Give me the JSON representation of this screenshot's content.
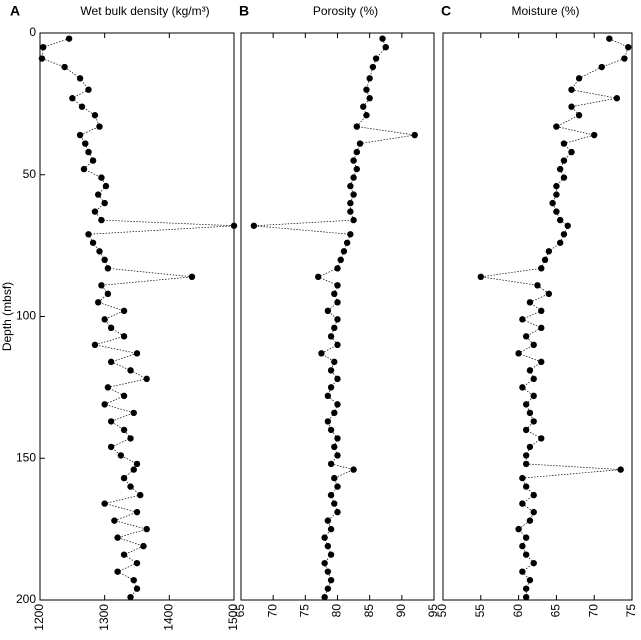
{
  "chart_data": [
    {
      "type": "line",
      "panel": "A",
      "title": "Wet bulk density (kg/m³)",
      "ylabel": "Depth (mbsf)",
      "x": [
        1245,
        1205,
        1203,
        1238,
        1262,
        1275,
        1250,
        1265,
        1285,
        1292,
        1262,
        1270,
        1275,
        1282,
        1268,
        1295,
        1302,
        1290,
        1300,
        1285,
        1295,
        1500,
        1275,
        1282,
        1292,
        1300,
        1305,
        1435,
        1295,
        1305,
        1290,
        1330,
        1300,
        1310,
        1330,
        1285,
        1350,
        1310,
        1340,
        1365,
        1305,
        1330,
        1300,
        1345,
        1310,
        1330,
        1340,
        1310,
        1325,
        1350,
        1345,
        1330,
        1340,
        1355,
        1300,
        1350,
        1315,
        1365,
        1320,
        1360,
        1330,
        1350,
        1320,
        1345,
        1350,
        1340
      ],
      "y": [
        2,
        5,
        9,
        12,
        16,
        20,
        23,
        26,
        29,
        33,
        36,
        39,
        42,
        45,
        48,
        51,
        54,
        57,
        60,
        63,
        66,
        68,
        71,
        74,
        77,
        80,
        83,
        86,
        89,
        92,
        95,
        98,
        101,
        104,
        107,
        110,
        113,
        116,
        119,
        122,
        125,
        128,
        131,
        134,
        137,
        140,
        143,
        146,
        149,
        152,
        154,
        157,
        160,
        163,
        166,
        169,
        172,
        175,
        178,
        181,
        184,
        187,
        190,
        193,
        196,
        199
      ],
      "xlim": [
        1200,
        1500
      ],
      "xticks": [
        1200,
        1300,
        1400,
        1500
      ],
      "ylim": [
        0,
        200
      ],
      "yticks": [
        0,
        50,
        100,
        150,
        200
      ],
      "y_inverted": true,
      "color": "#000000",
      "line_style": "dotted"
    },
    {
      "type": "line",
      "panel": "B",
      "title": "Porosity (%)",
      "x": [
        87,
        87.5,
        86,
        85.5,
        85,
        84.5,
        85,
        84,
        84.5,
        83,
        92,
        83.5,
        83,
        82.5,
        83,
        82.5,
        82,
        82.5,
        82,
        82,
        82.5,
        67,
        82,
        81.5,
        81,
        80.5,
        80,
        77,
        80,
        79.5,
        80,
        78.5,
        80,
        79.5,
        79,
        80,
        77.5,
        79.5,
        79,
        80,
        79,
        78.5,
        80,
        79.5,
        78.5,
        79,
        80,
        79.5,
        80,
        79,
        82.5,
        79.5,
        80,
        79,
        79.5,
        80,
        78.5,
        79,
        78,
        78.5,
        79,
        78,
        78.5,
        79,
        78.5,
        78
      ],
      "y": [
        2,
        5,
        9,
        12,
        16,
        20,
        23,
        26,
        29,
        33,
        36,
        39,
        42,
        45,
        48,
        51,
        54,
        57,
        60,
        63,
        66,
        68,
        71,
        74,
        77,
        80,
        83,
        86,
        89,
        92,
        95,
        98,
        101,
        104,
        107,
        110,
        113,
        116,
        119,
        122,
        125,
        128,
        131,
        134,
        137,
        140,
        143,
        146,
        149,
        152,
        154,
        157,
        160,
        163,
        166,
        169,
        172,
        175,
        178,
        181,
        184,
        187,
        190,
        193,
        196,
        199
      ],
      "xlim": [
        65,
        95
      ],
      "xticks": [
        65,
        70,
        75,
        80,
        85,
        90,
        95
      ],
      "ylim": [
        0,
        200
      ],
      "y_inverted": true,
      "color": "#000000",
      "line_style": "dotted"
    },
    {
      "type": "line",
      "panel": "C",
      "title": "Moisture (%)",
      "x": [
        72,
        74.5,
        74,
        71,
        68,
        67,
        73,
        67,
        68,
        65,
        70,
        66,
        67,
        66,
        65.5,
        66,
        65,
        65,
        64.5,
        65,
        65.5,
        66.5,
        66,
        65.5,
        64,
        63.5,
        63,
        55,
        62.5,
        64,
        61.5,
        63,
        60.5,
        63,
        61,
        62,
        60,
        63,
        61.5,
        62,
        60.5,
        62,
        61,
        61.5,
        62,
        61,
        63,
        61.5,
        61,
        61,
        73.5,
        60.5,
        61,
        62,
        60.5,
        62,
        61.5,
        60,
        61,
        60.5,
        61,
        62,
        60.5,
        61.5,
        61,
        61
      ],
      "y": [
        2,
        5,
        9,
        12,
        16,
        20,
        23,
        26,
        29,
        33,
        36,
        39,
        42,
        45,
        48,
        51,
        54,
        57,
        60,
        63,
        66,
        68,
        71,
        74,
        77,
        80,
        83,
        86,
        89,
        92,
        95,
        98,
        101,
        104,
        107,
        110,
        113,
        116,
        119,
        122,
        125,
        128,
        131,
        134,
        137,
        140,
        143,
        146,
        149,
        152,
        154,
        157,
        160,
        163,
        166,
        169,
        172,
        175,
        178,
        181,
        184,
        187,
        190,
        193,
        196,
        199
      ],
      "xlim": [
        50,
        75
      ],
      "xticks": [
        50,
        55,
        60,
        65,
        70,
        75
      ],
      "ylim": [
        0,
        200
      ],
      "y_inverted": true,
      "color": "#000000",
      "line_style": "dotted"
    }
  ]
}
